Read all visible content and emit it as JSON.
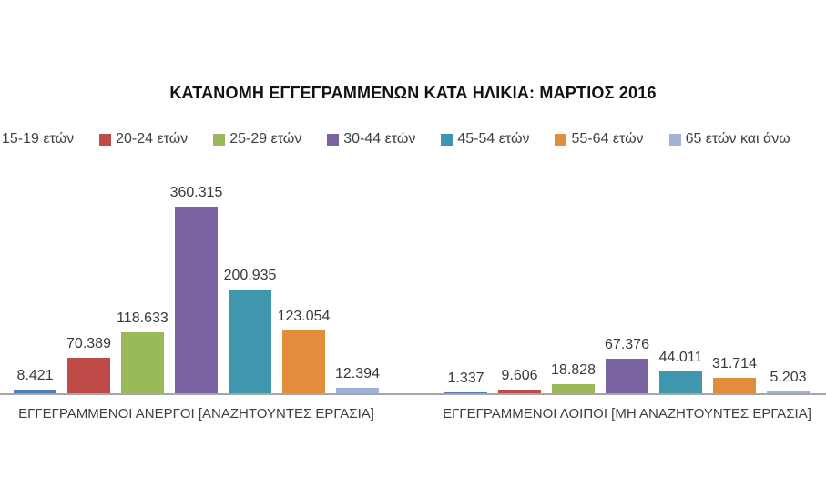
{
  "chart_data": {
    "type": "bar",
    "title": "ΚΑΤΑΝΟΜΗ ΕΓΓΕΓΡΑΜΜΕΝΩΝ ΚΑΤΑ ΗΛΙΚΙΑ: ΜΑΡΤΙΟΣ 2016",
    "categories": [
      "ΕΓΓΕΓΡΑΜΜΕΝΟΙ ΑΝΕΡΓΟΙ [ΑΝΑΖΗΤΟΥΝΤΕΣ ΕΡΓΑΣΙΑ]",
      "ΕΓΓΕΓΡΑΜΜΕΝΟΙ ΛΟΙΠΟΙ [ΜΗ ΑΝΑΖΗΤΟΥΝΤΕΣ ΕΡΓΑΣΙΑ]"
    ],
    "series": [
      {
        "name": "15-19 ετών",
        "color": "#4E7DBA",
        "values": [
          8421,
          1337
        ],
        "data_labels": [
          "8.421",
          "1.337"
        ]
      },
      {
        "name": "20-24 ετών",
        "color": "#BE4B48",
        "values": [
          70389,
          9606
        ],
        "data_labels": [
          "70.389",
          "9.606"
        ]
      },
      {
        "name": "25-29 ετών",
        "color": "#9ABA59",
        "values": [
          118633,
          18828
        ],
        "data_labels": [
          "118.633",
          "18.828"
        ]
      },
      {
        "name": "30-44 ετών",
        "color": "#7A63A1",
        "values": [
          360315,
          67376
        ],
        "data_labels": [
          "360.315",
          "67.376"
        ]
      },
      {
        "name": "45-54 ετών",
        "color": "#3F97AE",
        "values": [
          200935,
          44011
        ],
        "data_labels": [
          "200.935",
          "44.011"
        ]
      },
      {
        "name": "55-64 ετών",
        "color": "#E28C3E",
        "values": [
          123054,
          31714
        ],
        "data_labels": [
          "123.054",
          "31.714"
        ]
      },
      {
        "name": "65 ετών και άνω",
        "color": "#9FB3D8",
        "values": [
          12394,
          5203
        ],
        "data_labels": [
          "12.394",
          "5.203"
        ]
      }
    ],
    "ylim": [
      0,
      380000
    ],
    "grid": false,
    "legend_position": "top",
    "axis_line_color": "#A6A6A6"
  }
}
